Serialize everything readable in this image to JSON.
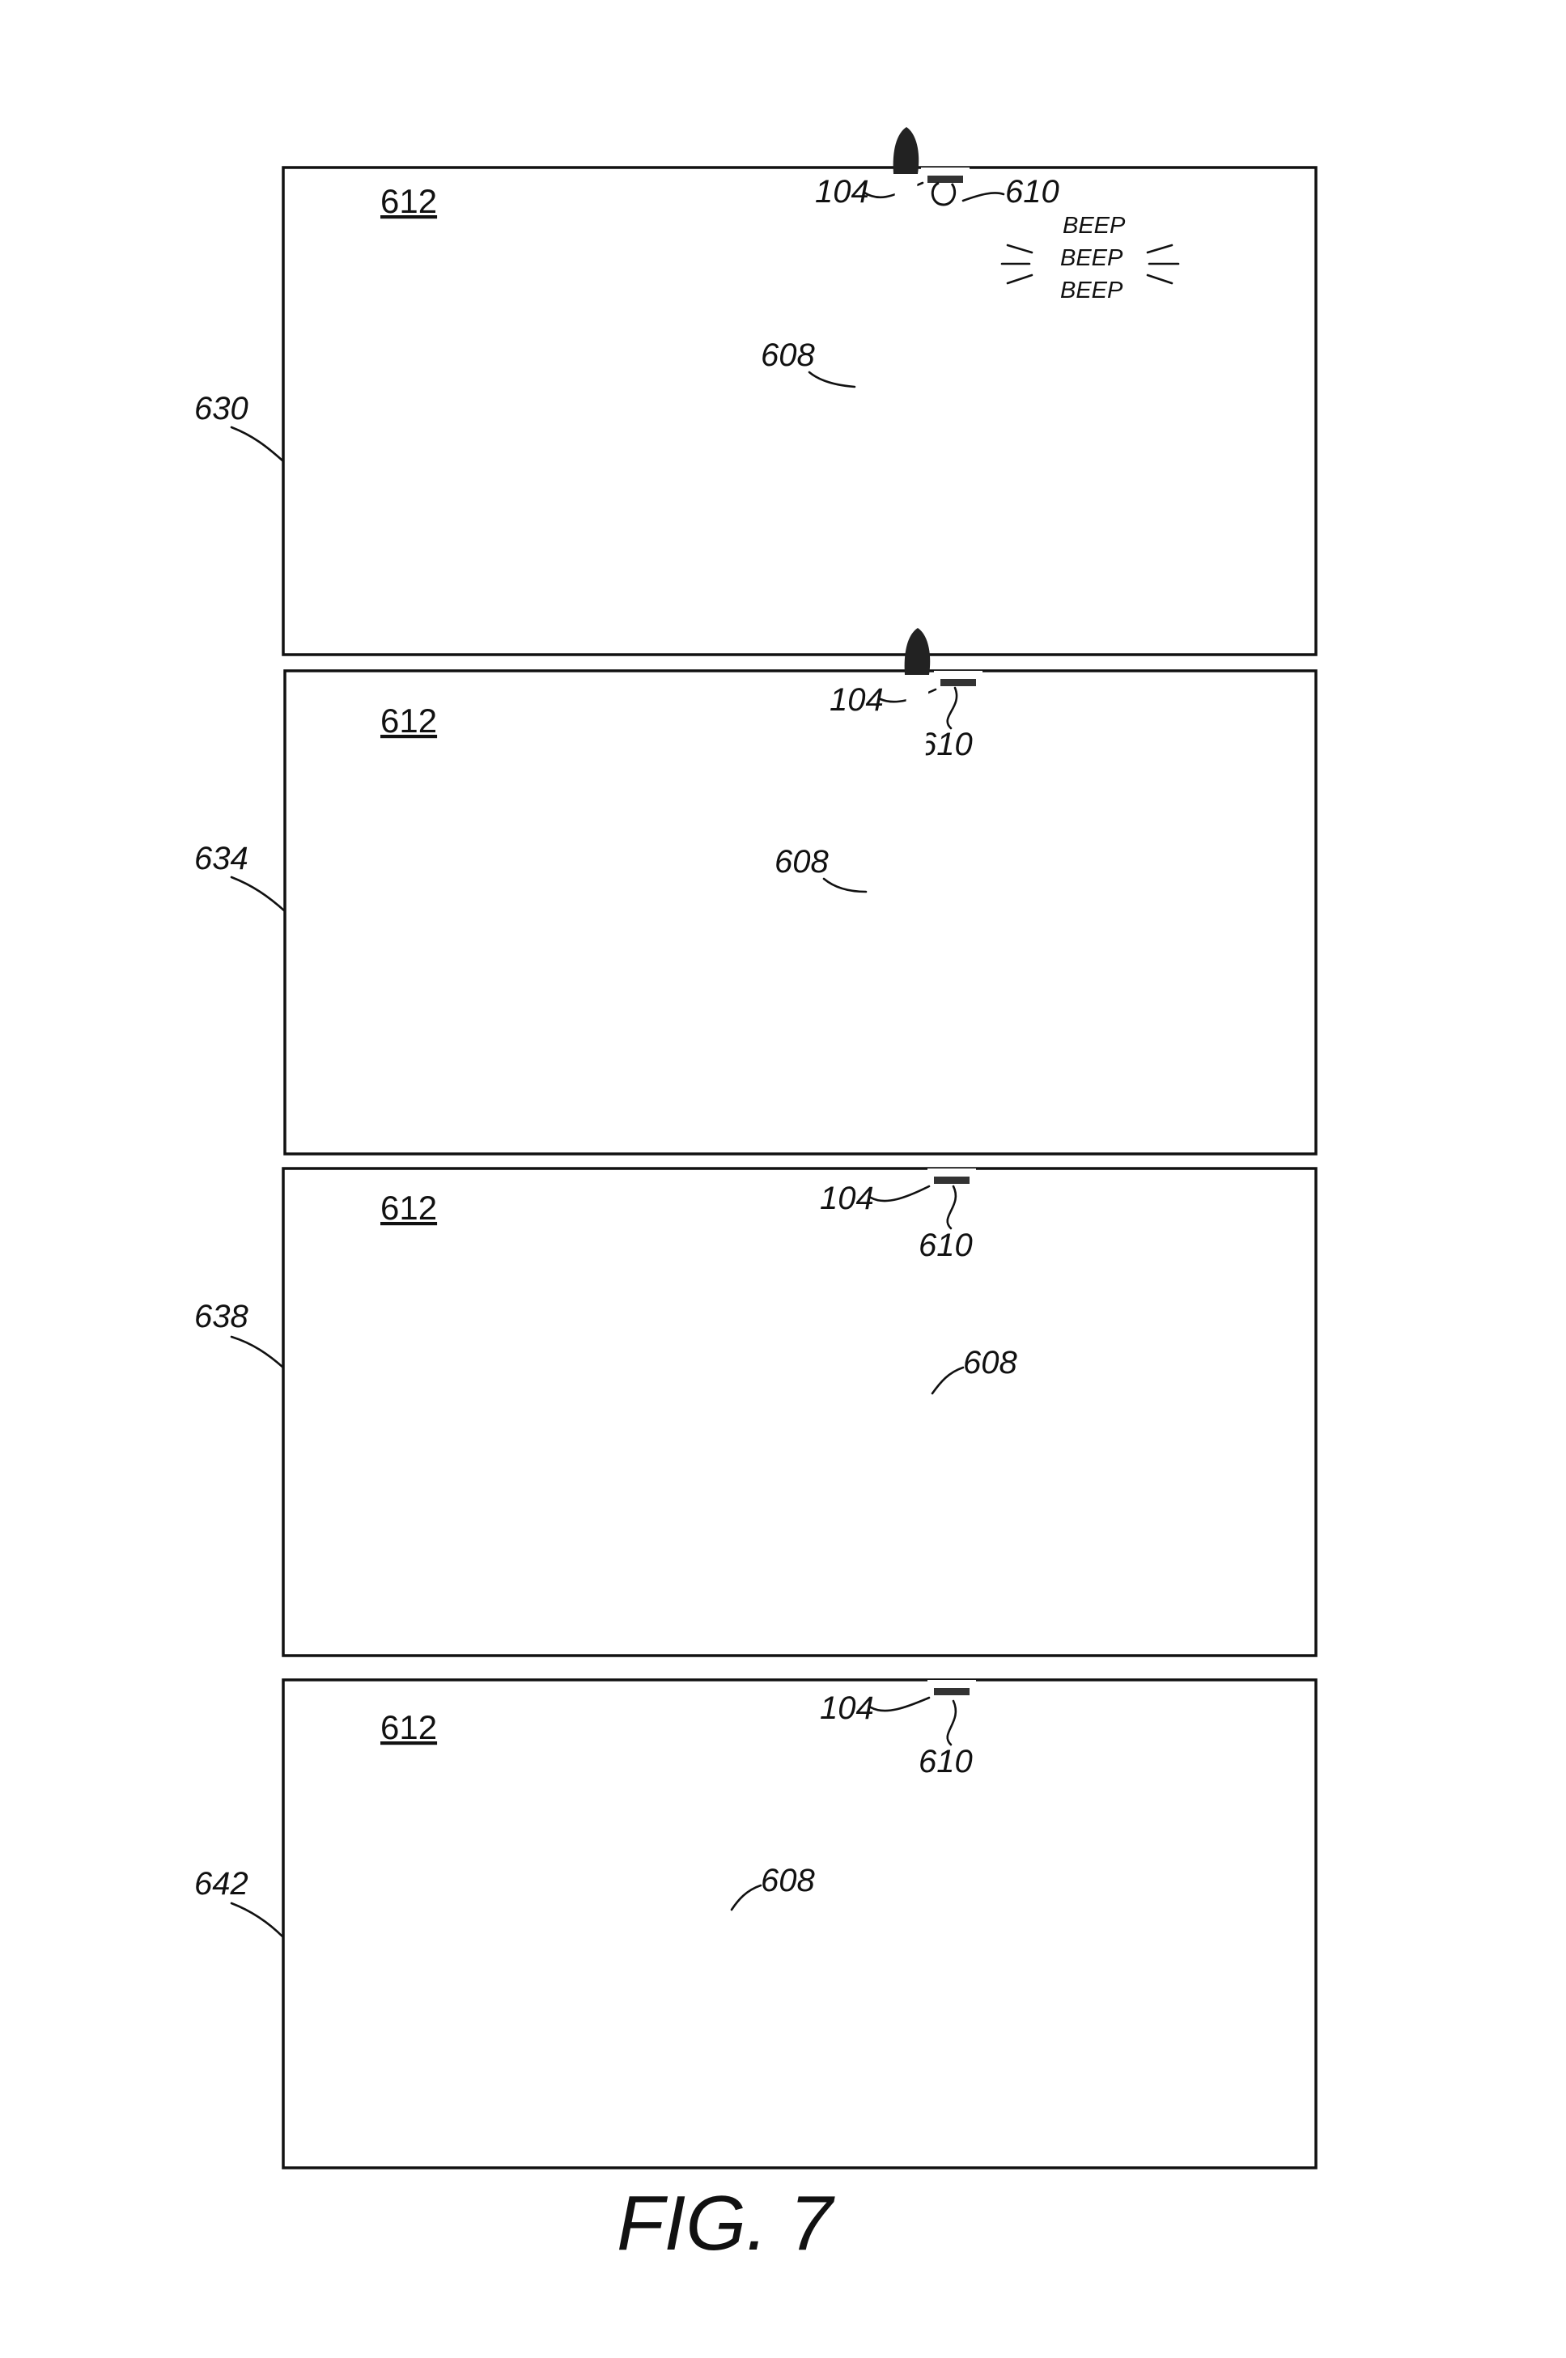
{
  "figure": {
    "caption": "FIG. 7",
    "panels": [
      {
        "id": "630",
        "room": "612",
        "device": "104",
        "sensor": "610",
        "person": "608",
        "beep": [
          "BEEP",
          "BEEP",
          "BEEP"
        ]
      },
      {
        "id": "634",
        "room": "612",
        "device": "104",
        "sensor": "610",
        "person": "608"
      },
      {
        "id": "638",
        "room": "612",
        "device": "104",
        "sensor": "610",
        "person": "608"
      },
      {
        "id": "642",
        "room": "612",
        "device": "104",
        "sensor": "610",
        "person": "608"
      }
    ]
  }
}
